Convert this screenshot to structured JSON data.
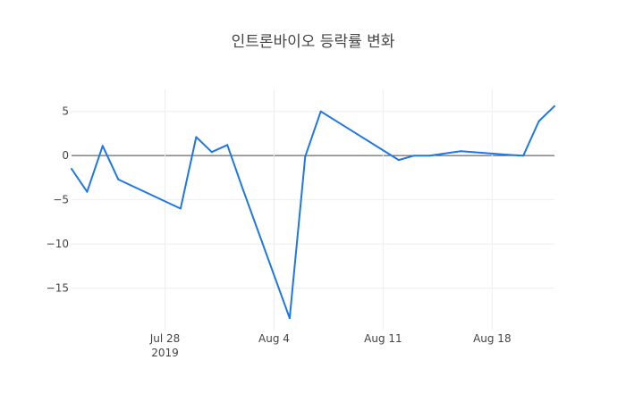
{
  "chart_data": {
    "type": "line",
    "title": "인트론바이오 등락률 변화",
    "xlabel": "",
    "ylabel": "",
    "ylim": [
      -19.8,
      7.5
    ],
    "xlim": [
      "2019-07-22",
      "2019-08-22"
    ],
    "grid": true,
    "legend": "none",
    "x_ticks": [
      {
        "date": "2019-07-28",
        "label": "Jul 28",
        "sublabel": "2019"
      },
      {
        "date": "2019-08-04",
        "label": "Aug 4",
        "sublabel": ""
      },
      {
        "date": "2019-08-11",
        "label": "Aug 11",
        "sublabel": ""
      },
      {
        "date": "2019-08-18",
        "label": "Aug 18",
        "sublabel": ""
      }
    ],
    "y_ticks": [
      {
        "value": 5,
        "label": "5"
      },
      {
        "value": 0,
        "label": "0"
      },
      {
        "value": -5,
        "label": "−5"
      },
      {
        "value": -10,
        "label": "−10"
      },
      {
        "value": -15,
        "label": "−15"
      }
    ],
    "series": [
      {
        "name": "",
        "color": "#1f77e4",
        "points": [
          {
            "x": "2019-07-22",
            "y": -1.5
          },
          {
            "x": "2019-07-23",
            "y": -4.1
          },
          {
            "x": "2019-07-24",
            "y": 1.1
          },
          {
            "x": "2019-07-25",
            "y": -2.7
          },
          {
            "x": "2019-07-29",
            "y": -6.0
          },
          {
            "x": "2019-07-30",
            "y": 2.1
          },
          {
            "x": "2019-07-31",
            "y": 0.4
          },
          {
            "x": "2019-08-01",
            "y": 1.2
          },
          {
            "x": "2019-08-02",
            "y": -3.8
          },
          {
            "x": "2019-08-05",
            "y": -18.4
          },
          {
            "x": "2019-08-06",
            "y": -0.1
          },
          {
            "x": "2019-08-07",
            "y": 5.0
          },
          {
            "x": "2019-08-12",
            "y": -0.5
          },
          {
            "x": "2019-08-13",
            "y": 0.0
          },
          {
            "x": "2019-08-14",
            "y": 0.0
          },
          {
            "x": "2019-08-16",
            "y": 0.5
          },
          {
            "x": "2019-08-19",
            "y": 0.1
          },
          {
            "x": "2019-08-20",
            "y": 0.0
          },
          {
            "x": "2019-08-21",
            "y": 3.9
          },
          {
            "x": "2019-08-22",
            "y": 5.6
          }
        ]
      }
    ]
  }
}
